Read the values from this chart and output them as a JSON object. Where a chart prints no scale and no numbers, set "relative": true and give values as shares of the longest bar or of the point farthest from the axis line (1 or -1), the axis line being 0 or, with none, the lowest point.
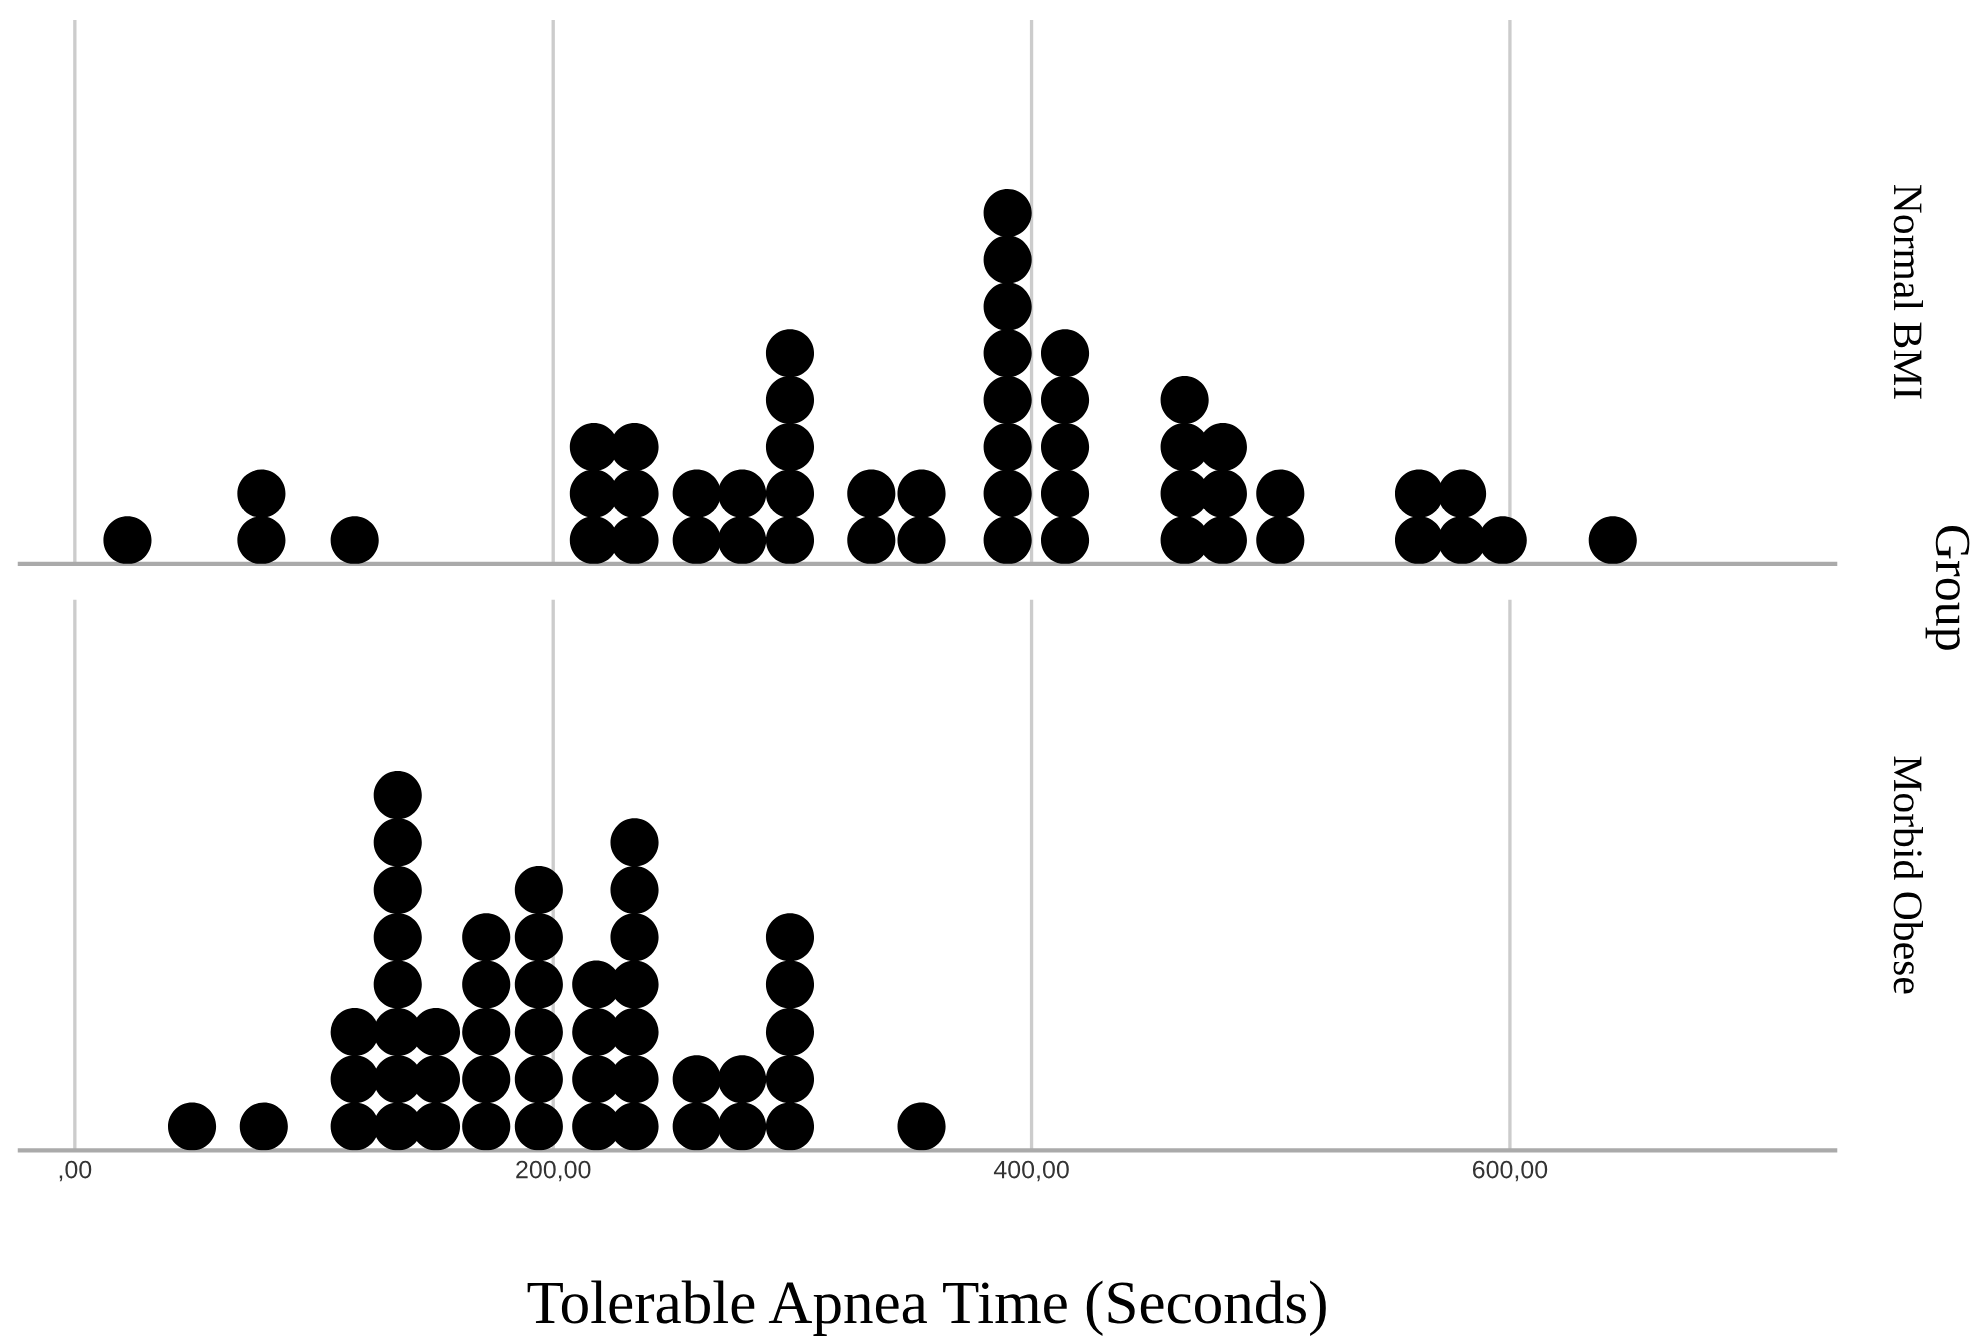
{
  "chart_data": [
    {
      "type": "scatter",
      "ylabel": "Normal BMI",
      "annotations": [
        "Group"
      ],
      "marker": "circle",
      "grid": "x",
      "tick_labels": false,
      "relative": true,
      "xlim": [
        -23,
        736
      ],
      "xticks": [
        {
          "value": 0,
          "label": null
        },
        {
          "value": 200,
          "label": null
        },
        {
          "value": 400,
          "label": null
        },
        {
          "value": 600,
          "label": null
        }
      ],
      "series": [
        {
          "color": "#000000",
          "x": [
            22,
            78,
            78,
            117,
            217,
            217,
            217,
            234,
            234,
            234,
            260,
            260,
            279,
            279,
            299,
            299,
            299,
            299,
            299,
            333,
            333,
            354,
            354,
            390,
            390,
            390,
            390,
            390,
            390,
            390,
            390,
            414,
            414,
            414,
            414,
            414,
            464,
            464,
            464,
            464,
            480,
            480,
            480,
            504,
            504,
            562,
            562,
            580,
            580,
            597,
            643
          ],
          "values": [
            0.067,
            0.067,
            0.2,
            0.067,
            0.067,
            0.2,
            0.333,
            0.067,
            0.2,
            0.333,
            0.067,
            0.2,
            0.067,
            0.2,
            0.067,
            0.2,
            0.333,
            0.467,
            0.6,
            0.067,
            0.2,
            0.067,
            0.2,
            0.067,
            0.2,
            0.333,
            0.467,
            0.6,
            0.733,
            0.867,
            1,
            0.067,
            0.2,
            0.333,
            0.467,
            0.6,
            0.067,
            0.2,
            0.333,
            0.467,
            0.067,
            0.2,
            0.333,
            0.067,
            0.2,
            0.067,
            0.2,
            0.067,
            0.2,
            0.067,
            0.067
          ]
        }
      ]
    },
    {
      "type": "scatter",
      "ylabel": "Morbid Obese",
      "xlabel": "Tolerable Apnea Time (Seconds)",
      "marker": "circle",
      "grid": "x",
      "tick_labels": "x",
      "relative": true,
      "xlim": [
        -23,
        736
      ],
      "xticks": [
        {
          "value": 0,
          "label": ",00"
        },
        {
          "value": 200,
          "label": "200,00"
        },
        {
          "value": 400,
          "label": "400,00"
        },
        {
          "value": 600,
          "label": "600,00"
        }
      ],
      "series": [
        {
          "color": "#000000",
          "x": [
            49,
            79,
            117,
            117,
            117,
            135,
            135,
            135,
            135,
            135,
            135,
            135,
            135,
            151,
            151,
            151,
            172,
            172,
            172,
            172,
            172,
            194,
            194,
            194,
            194,
            194,
            194,
            218,
            218,
            218,
            218,
            234,
            234,
            234,
            234,
            234,
            234,
            234,
            260,
            260,
            279,
            279,
            299,
            299,
            299,
            299,
            299,
            354
          ],
          "values": [
            0.067,
            0.067,
            0.067,
            0.2,
            0.333,
            0.067,
            0.2,
            0.333,
            0.467,
            0.6,
            0.733,
            0.867,
            1,
            0.067,
            0.2,
            0.333,
            0.067,
            0.2,
            0.333,
            0.467,
            0.6,
            0.067,
            0.2,
            0.333,
            0.467,
            0.6,
            0.733,
            0.067,
            0.2,
            0.333,
            0.467,
            0.067,
            0.2,
            0.333,
            0.467,
            0.6,
            0.733,
            0.867,
            0.067,
            0.2,
            0.067,
            0.2,
            0.067,
            0.2,
            0.333,
            0.467,
            0.6,
            0.067
          ]
        }
      ]
    }
  ]
}
